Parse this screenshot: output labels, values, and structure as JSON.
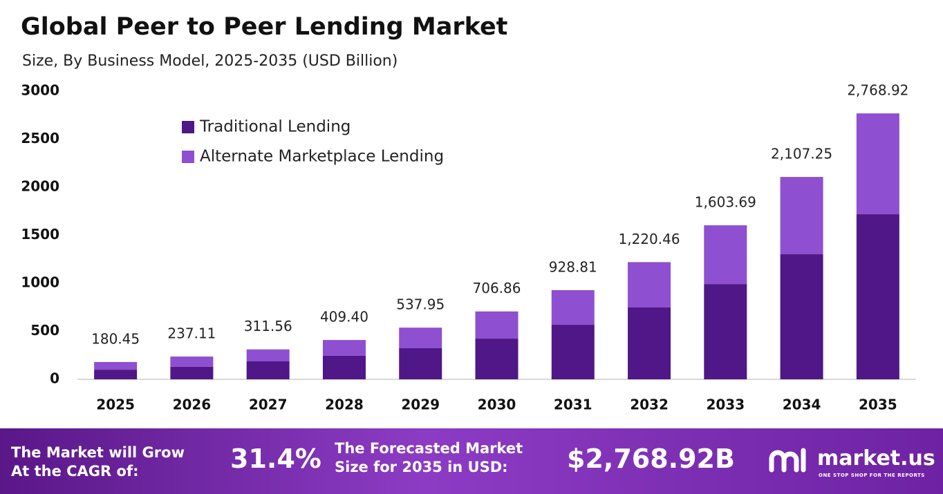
{
  "chart_data": {
    "type": "stacked_bar",
    "title": "Global Peer to Peer Lending Market",
    "subtitle": "Size, By Business Model, 2025-2035 (USD Billion)",
    "categories": [
      "2025",
      "2026",
      "2027",
      "2028",
      "2029",
      "2030",
      "2031",
      "2032",
      "2033",
      "2034",
      "2035"
    ],
    "series": [
      {
        "name": "Traditional Lending",
        "color": "#4f1787",
        "values": [
          100,
          130,
          187,
          245,
          324,
          424,
          568,
          748,
          992,
          1302,
          1719
        ]
      },
      {
        "name": "Alternate Marketplace Lending",
        "color": "#8e4fd0",
        "values": [
          80.45,
          107.11,
          124.56,
          164.4,
          213.95,
          282.86,
          360.81,
          472.46,
          611.69,
          805.25,
          1049.92
        ]
      }
    ],
    "totals": [
      180.45,
      237.11,
      311.56,
      409.4,
      537.95,
      706.86,
      928.81,
      1220.46,
      1603.69,
      2107.25,
      2768.92
    ],
    "total_labels": [
      "180.45",
      "237.11",
      "311.56",
      "409.40",
      "537.95",
      "706.86",
      "928.81",
      "1,220.46",
      "1,603.69",
      "2,107.25",
      "2,768.92"
    ],
    "ylim": [
      0,
      3000
    ],
    "yticks": [
      0,
      500,
      1000,
      1500,
      2000,
      2500,
      3000
    ],
    "legend": "top-left"
  },
  "banner": {
    "cagr_text": [
      "The Market will Grow",
      "At the CAGR of:"
    ],
    "cagr_value": "31.4%",
    "forecast_text": [
      "The Forecasted Market",
      "Size for 2035 in USD:"
    ],
    "forecast_value": "$2,768.92B",
    "brand": "market.us",
    "tagline": "ONE STOP SHOP FOR THE REPORTS"
  }
}
